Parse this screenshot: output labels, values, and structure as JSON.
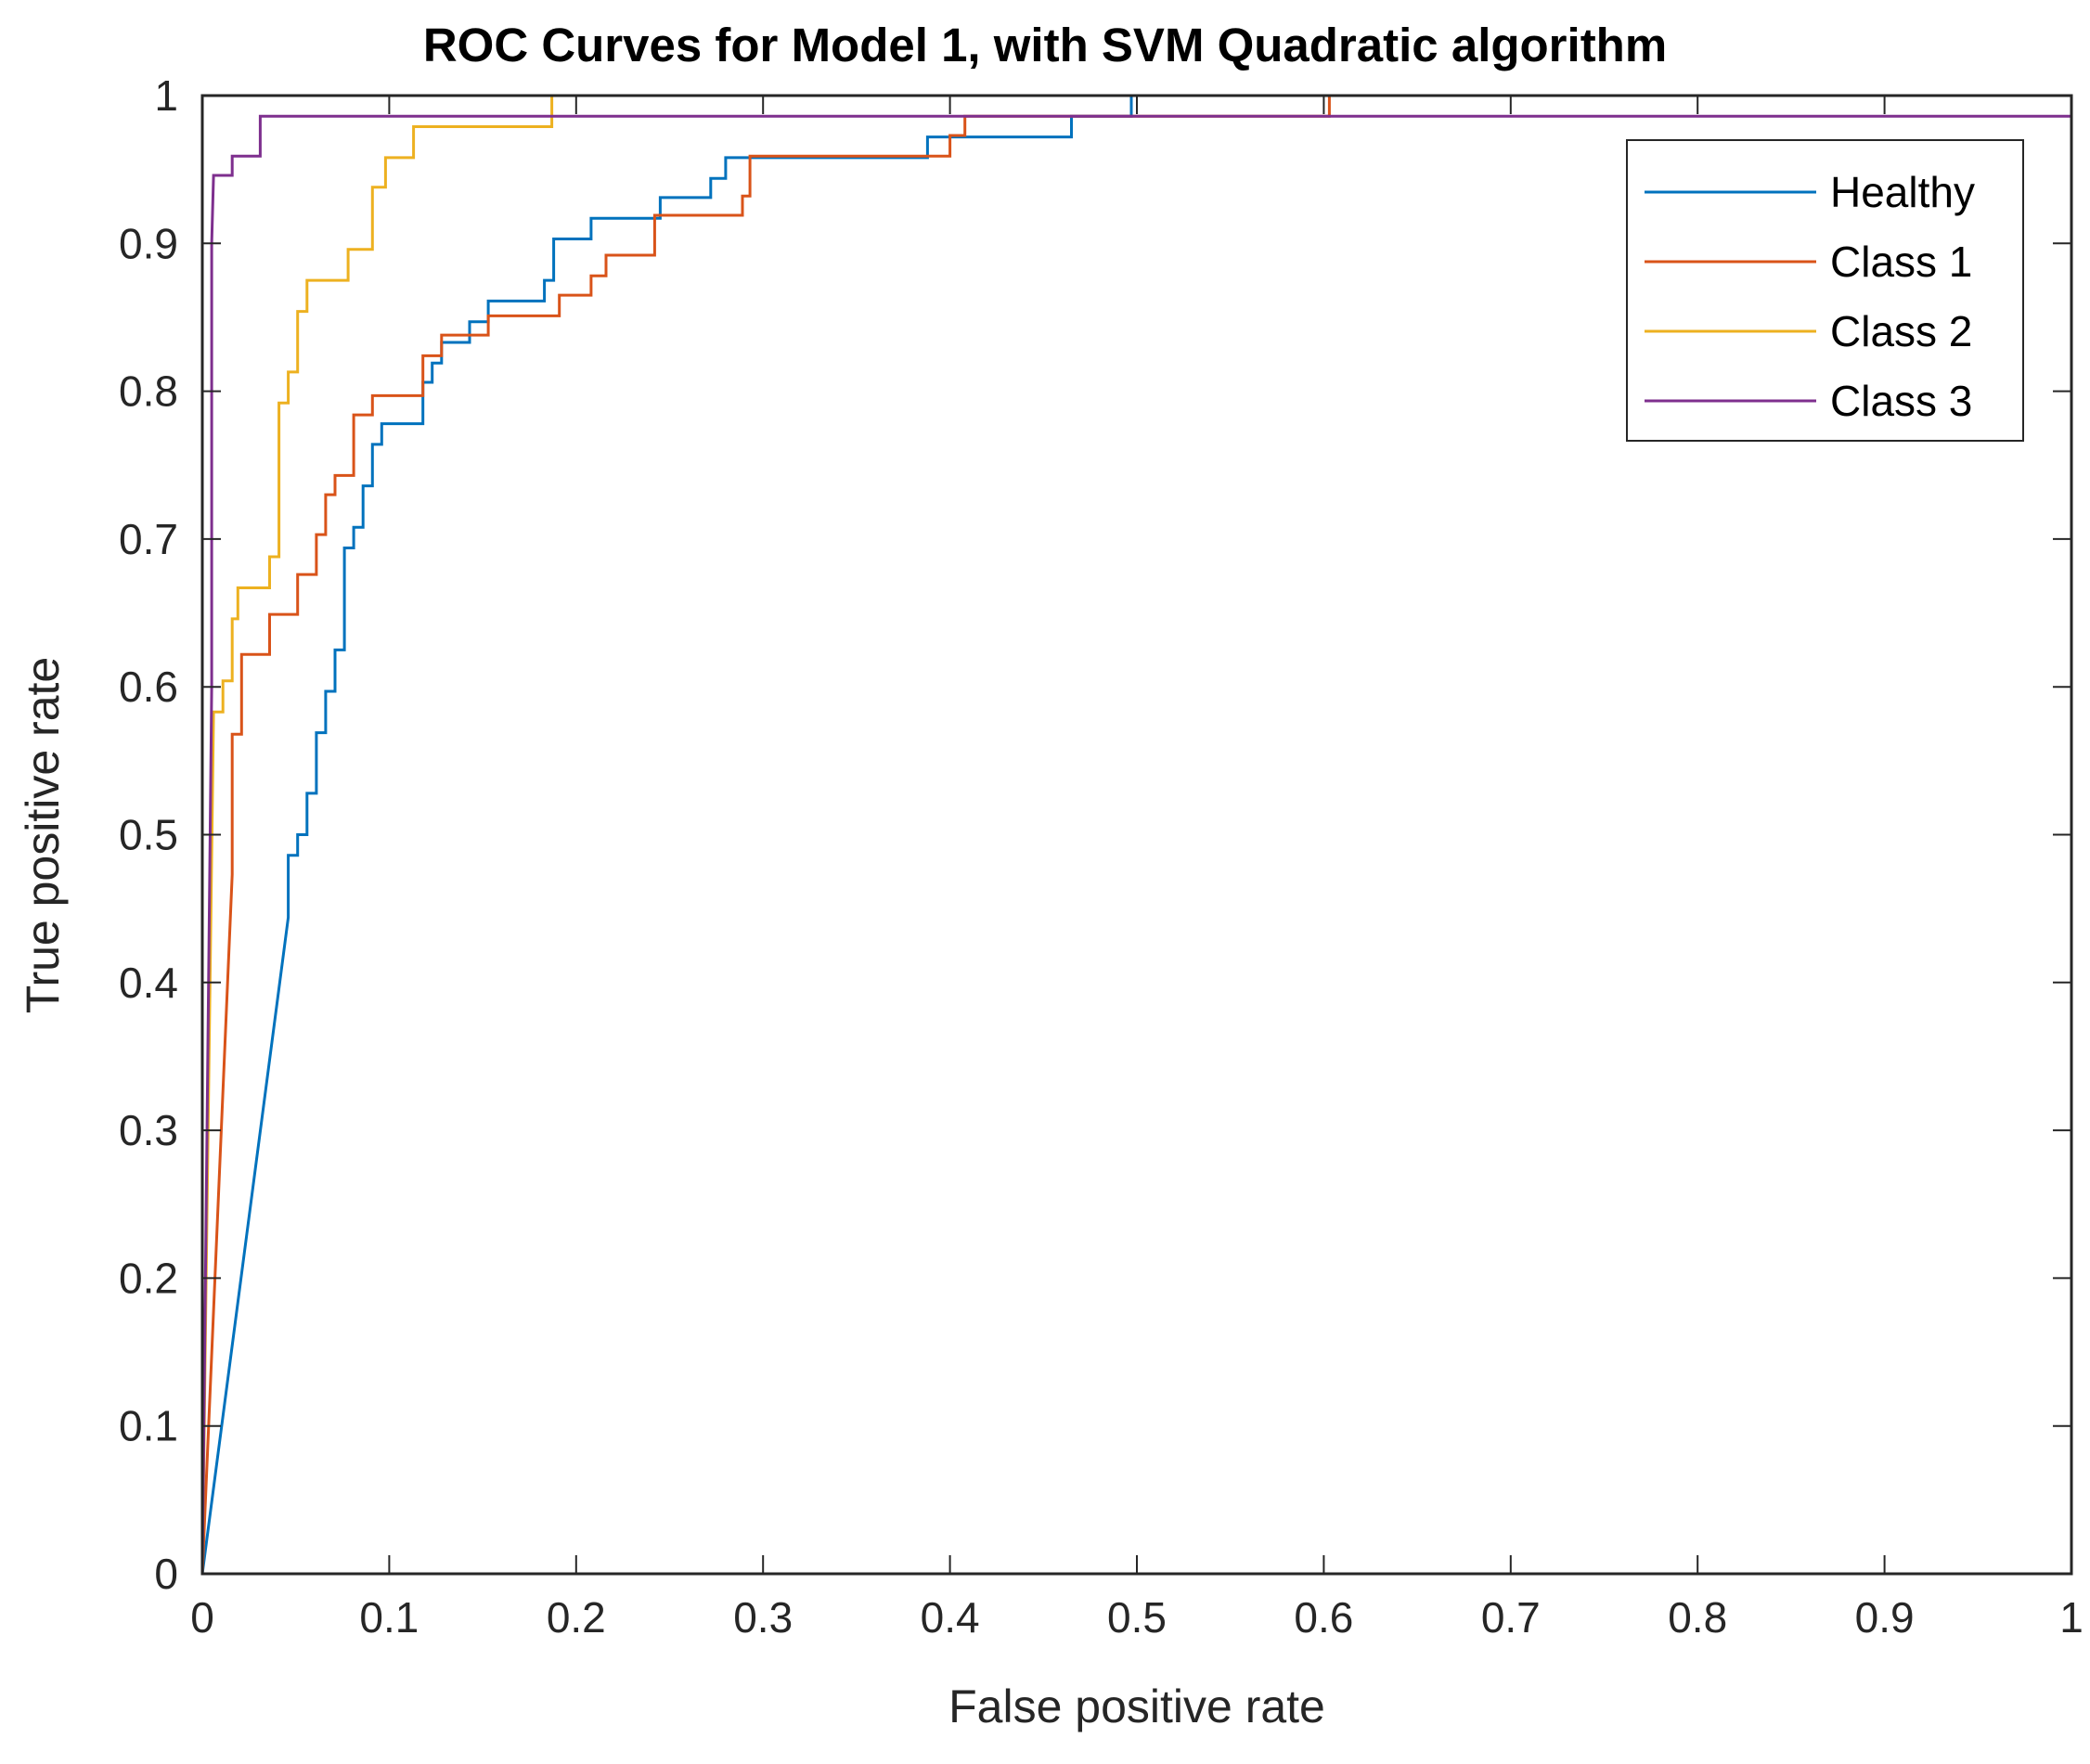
{
  "chart_data": {
    "type": "line",
    "title": "ROC Curves for Model 1, with SVM Quadratic algorithm",
    "xlabel": "False positive rate",
    "ylabel": "True positive rate",
    "xlim": [
      0,
      1
    ],
    "ylim": [
      0,
      1
    ],
    "xticks": [
      0,
      0.1,
      0.2,
      0.3,
      0.4,
      0.5,
      0.6,
      0.7,
      0.8,
      0.9,
      1
    ],
    "yticks": [
      0,
      0.1,
      0.2,
      0.3,
      0.4,
      0.5,
      0.6,
      0.7,
      0.8,
      0.9,
      1
    ],
    "xtick_labels": [
      "0",
      "0.1",
      "0.2",
      "0.3",
      "0.4",
      "0.5",
      "0.6",
      "0.7",
      "0.8",
      "0.9",
      "1"
    ],
    "ytick_labels": [
      "0",
      "0.1",
      "0.2",
      "0.3",
      "0.4",
      "0.5",
      "0.6",
      "0.7",
      "0.8",
      "0.9",
      "1"
    ],
    "grid": false,
    "legend_position": "top-right",
    "series": [
      {
        "name": "Healthy",
        "color": "#0072BD",
        "points": [
          [
            0,
            0
          ],
          [
            0.046,
            0.444
          ],
          [
            0.046,
            0.486
          ],
          [
            0.051,
            0.486
          ],
          [
            0.051,
            0.5
          ],
          [
            0.056,
            0.5
          ],
          [
            0.056,
            0.528
          ],
          [
            0.061,
            0.528
          ],
          [
            0.061,
            0.569
          ],
          [
            0.066,
            0.569
          ],
          [
            0.066,
            0.597
          ],
          [
            0.071,
            0.597
          ],
          [
            0.071,
            0.625
          ],
          [
            0.076,
            0.625
          ],
          [
            0.076,
            0.694
          ],
          [
            0.081,
            0.694
          ],
          [
            0.081,
            0.708
          ],
          [
            0.086,
            0.708
          ],
          [
            0.086,
            0.736
          ],
          [
            0.091,
            0.736
          ],
          [
            0.091,
            0.764
          ],
          [
            0.096,
            0.764
          ],
          [
            0.096,
            0.778
          ],
          [
            0.118,
            0.778
          ],
          [
            0.118,
            0.806
          ],
          [
            0.123,
            0.806
          ],
          [
            0.123,
            0.819
          ],
          [
            0.128,
            0.819
          ],
          [
            0.128,
            0.833
          ],
          [
            0.143,
            0.833
          ],
          [
            0.143,
            0.847
          ],
          [
            0.153,
            0.847
          ],
          [
            0.153,
            0.861
          ],
          [
            0.183,
            0.861
          ],
          [
            0.183,
            0.875
          ],
          [
            0.188,
            0.875
          ],
          [
            0.188,
            0.903
          ],
          [
            0.208,
            0.903
          ],
          [
            0.208,
            0.917
          ],
          [
            0.245,
            0.917
          ],
          [
            0.245,
            0.931
          ],
          [
            0.272,
            0.931
          ],
          [
            0.272,
            0.944
          ],
          [
            0.28,
            0.944
          ],
          [
            0.28,
            0.958
          ],
          [
            0.388,
            0.958
          ],
          [
            0.388,
            0.972
          ],
          [
            0.465,
            0.972
          ],
          [
            0.465,
            0.986
          ],
          [
            0.497,
            0.986
          ],
          [
            0.497,
            1
          ],
          [
            1,
            1
          ]
        ]
      },
      {
        "name": "Class 1",
        "color": "#D95319",
        "points": [
          [
            0,
            0
          ],
          [
            0.016,
            0.473
          ],
          [
            0.016,
            0.568
          ],
          [
            0.021,
            0.568
          ],
          [
            0.021,
            0.622
          ],
          [
            0.036,
            0.622
          ],
          [
            0.036,
            0.649
          ],
          [
            0.051,
            0.649
          ],
          [
            0.051,
            0.676
          ],
          [
            0.061,
            0.676
          ],
          [
            0.061,
            0.703
          ],
          [
            0.066,
            0.703
          ],
          [
            0.066,
            0.73
          ],
          [
            0.071,
            0.73
          ],
          [
            0.071,
            0.743
          ],
          [
            0.081,
            0.743
          ],
          [
            0.081,
            0.784
          ],
          [
            0.091,
            0.784
          ],
          [
            0.091,
            0.797
          ],
          [
            0.118,
            0.797
          ],
          [
            0.118,
            0.824
          ],
          [
            0.128,
            0.824
          ],
          [
            0.128,
            0.838
          ],
          [
            0.153,
            0.838
          ],
          [
            0.153,
            0.851
          ],
          [
            0.191,
            0.851
          ],
          [
            0.191,
            0.865
          ],
          [
            0.208,
            0.865
          ],
          [
            0.208,
            0.878
          ],
          [
            0.216,
            0.878
          ],
          [
            0.216,
            0.892
          ],
          [
            0.242,
            0.892
          ],
          [
            0.242,
            0.919
          ],
          [
            0.289,
            0.919
          ],
          [
            0.289,
            0.932
          ],
          [
            0.293,
            0.932
          ],
          [
            0.293,
            0.959
          ],
          [
            0.4,
            0.959
          ],
          [
            0.4,
            0.973
          ],
          [
            0.408,
            0.973
          ],
          [
            0.408,
            0.986
          ],
          [
            0.603,
            0.986
          ],
          [
            0.603,
            1
          ],
          [
            1,
            1
          ]
        ]
      },
      {
        "name": "Class 2",
        "color": "#EDB120",
        "points": [
          [
            0,
            0
          ],
          [
            0.006,
            0.583
          ],
          [
            0.011,
            0.583
          ],
          [
            0.011,
            0.604
          ],
          [
            0.016,
            0.604
          ],
          [
            0.016,
            0.646
          ],
          [
            0.019,
            0.646
          ],
          [
            0.019,
            0.667
          ],
          [
            0.036,
            0.667
          ],
          [
            0.036,
            0.688
          ],
          [
            0.041,
            0.688
          ],
          [
            0.041,
            0.792
          ],
          [
            0.046,
            0.792
          ],
          [
            0.046,
            0.813
          ],
          [
            0.051,
            0.813
          ],
          [
            0.051,
            0.854
          ],
          [
            0.056,
            0.854
          ],
          [
            0.056,
            0.875
          ],
          [
            0.078,
            0.875
          ],
          [
            0.078,
            0.896
          ],
          [
            0.091,
            0.896
          ],
          [
            0.091,
            0.938
          ],
          [
            0.098,
            0.938
          ],
          [
            0.098,
            0.958
          ],
          [
            0.113,
            0.958
          ],
          [
            0.113,
            0.979
          ],
          [
            0.187,
            0.979
          ],
          [
            0.187,
            1
          ],
          [
            1,
            1
          ]
        ]
      },
      {
        "name": "Class 3",
        "color": "#7E2F8E",
        "points": [
          [
            0,
            0
          ],
          [
            0.005,
            0.6
          ],
          [
            0.005,
            0.9
          ],
          [
            0.006,
            0.946
          ],
          [
            0.016,
            0.946
          ],
          [
            0.016,
            0.959
          ],
          [
            0.031,
            0.959
          ],
          [
            0.031,
            0.986
          ],
          [
            1,
            0.986
          ]
        ]
      }
    ]
  }
}
